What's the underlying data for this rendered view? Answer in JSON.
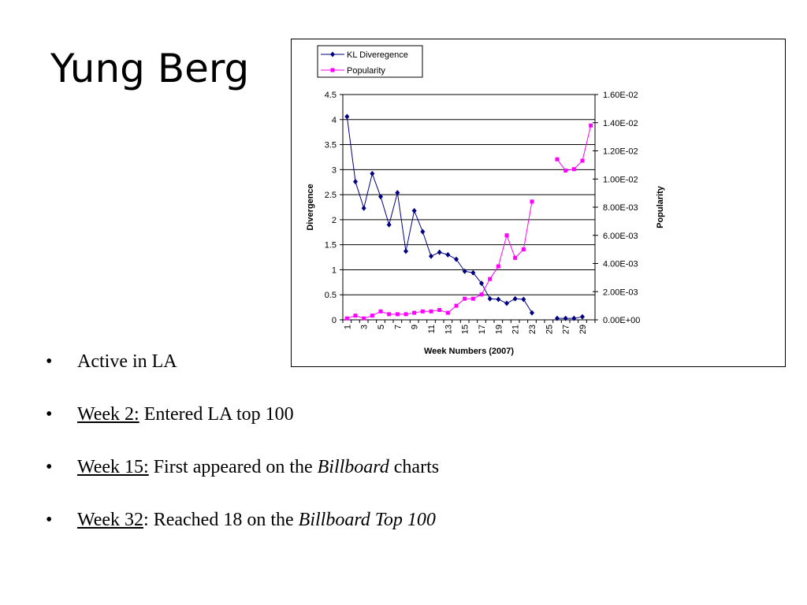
{
  "slide": {
    "title": "Yung Berg"
  },
  "bullets": [
    {
      "lead": "",
      "rest": "Active in LA",
      "italic": "",
      "tail": ""
    },
    {
      "lead": "Week 2:",
      "rest": " Entered LA top 100",
      "italic": "",
      "tail": ""
    },
    {
      "lead": "Week 15:",
      "rest": " First appeared on the ",
      "italic": "Billboard",
      "tail": " charts"
    },
    {
      "lead": "Week 32",
      "rest": ": Reached 18 on the ",
      "italic": "Billboard Top 100",
      "tail": ""
    }
  ],
  "chart_data": {
    "type": "line",
    "xlabel": "Week Numbers (2007)",
    "ylabel": "Divergence",
    "y2label": "Popularity",
    "x_tick_labels": [
      "1",
      "3",
      "5",
      "7",
      "9",
      "11",
      "13",
      "15",
      "17",
      "19",
      "21",
      "23",
      "25",
      "27",
      "29"
    ],
    "ylim": [
      0,
      4.5
    ],
    "y_ticks": [
      0,
      0.5,
      1,
      1.5,
      2,
      2.5,
      3,
      3.5,
      4,
      4.5
    ],
    "y_tick_labels": [
      "0",
      "0.5",
      "1",
      "1.5",
      "2",
      "2.5",
      "3",
      "3.5",
      "4",
      "4.5"
    ],
    "y2lim": [
      0,
      0.016
    ],
    "y2_ticks": [
      0,
      0.002,
      0.004,
      0.006,
      0.008,
      0.01,
      0.012,
      0.014,
      0.016
    ],
    "y2_tick_labels": [
      "0.00E+00",
      "2.00E-03",
      "4.00E-03",
      "6.00E-03",
      "8.00E-03",
      "1.00E-02",
      "1.20E-02",
      "1.40E-02",
      "1.60E-02"
    ],
    "x_categories": 30,
    "grid": "horizontal",
    "legend_position": "top-left",
    "series": [
      {
        "name": "KL Diveregence",
        "axis": "left",
        "color": "#000080",
        "marker": "diamond",
        "x": [
          1,
          2,
          3,
          4,
          5,
          6,
          7,
          8,
          9,
          10,
          11,
          12,
          13,
          14,
          15,
          16,
          17,
          18,
          19,
          20,
          21,
          22,
          23,
          24,
          25,
          26,
          27,
          28,
          29,
          30
        ],
        "values": [
          4.06,
          2.76,
          2.23,
          2.92,
          2.46,
          1.9,
          2.54,
          1.37,
          2.18,
          1.76,
          1.27,
          1.35,
          1.3,
          1.21,
          0.97,
          0.94,
          0.73,
          0.42,
          0.41,
          0.33,
          0.42,
          0.41,
          0.14,
          null,
          null,
          0.03,
          0.03,
          0.03,
          0.06,
          null
        ]
      },
      {
        "name": "Popularity",
        "axis": "right",
        "color": "#ff00ff",
        "marker": "square",
        "x": [
          1,
          2,
          3,
          4,
          5,
          6,
          7,
          8,
          9,
          10,
          11,
          12,
          13,
          14,
          15,
          16,
          17,
          18,
          19,
          20,
          21,
          22,
          23,
          24,
          25,
          26,
          27,
          28,
          29,
          30
        ],
        "values": [
          0.0001,
          0.0003,
          0.0001,
          0.0003,
          0.0006,
          0.0004,
          0.0004,
          0.0004,
          0.0005,
          0.0006,
          0.0006,
          0.0007,
          0.0005,
          0.001,
          0.0015,
          0.0015,
          0.0018,
          0.0029,
          0.0038,
          0.006,
          0.0044,
          0.005,
          0.0084,
          null,
          null,
          0.0114,
          0.0106,
          0.0107,
          0.0113,
          0.0138
        ]
      }
    ]
  }
}
